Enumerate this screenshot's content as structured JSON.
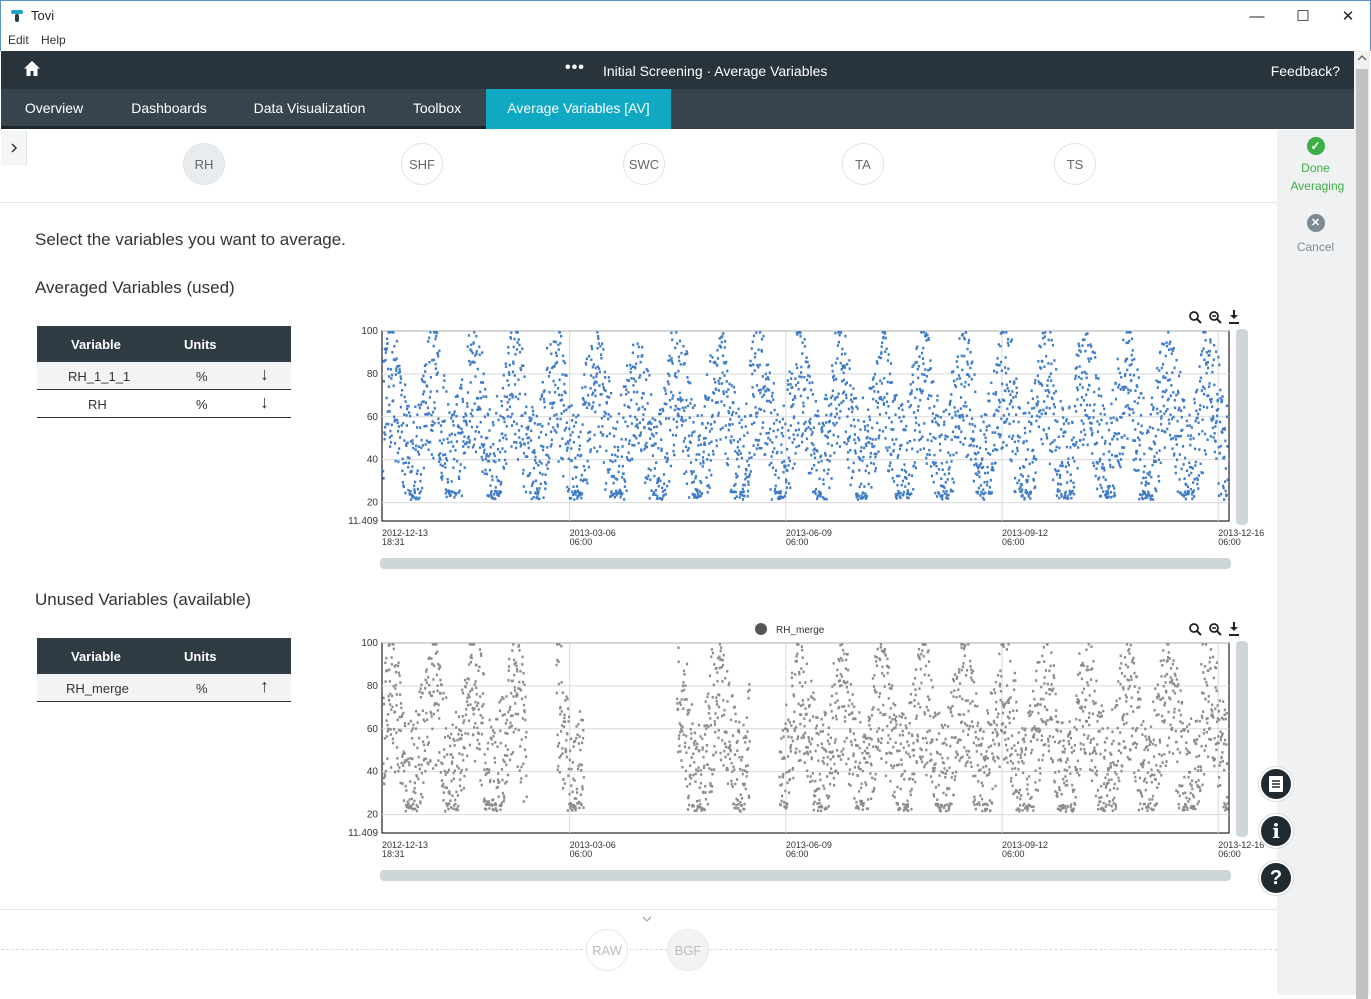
{
  "window": {
    "title": "Tovi",
    "minimize": "—",
    "maximize": "☐",
    "close": "✕"
  },
  "menu": {
    "edit": "Edit",
    "help": "Help"
  },
  "header": {
    "dots": "•••",
    "breadcrumb": "Initial Screening · Average Variables",
    "feedback": "Feedback?"
  },
  "tabs": [
    "Overview",
    "Dashboards",
    "Data Visualization",
    "Toolbox",
    "Average Variables [AV]"
  ],
  "variables": [
    "RH",
    "SHF",
    "SWC",
    "TA",
    "TS"
  ],
  "bottom_steps": [
    "RAW",
    "BGF"
  ],
  "rail": {
    "done": "Done Averaging",
    "cancel": "Cancel"
  },
  "instruction": "Select the variables you want to average.",
  "averaged": {
    "heading": "Averaged Variables (used)",
    "col_variable": "Variable",
    "col_units": "Units",
    "rows": [
      {
        "variable": "RH_1_1_1",
        "units": "%",
        "action": "↓"
      },
      {
        "variable": "RH",
        "units": "%",
        "action": "↓"
      }
    ]
  },
  "unused": {
    "heading": "Unused Variables (available)",
    "col_variable": "Variable",
    "col_units": "Units",
    "rows": [
      {
        "variable": "RH_merge",
        "units": "%",
        "action": "↑"
      }
    ]
  },
  "colors": {
    "header": "#29333b",
    "tabs": "#37444d",
    "active_tab": "#0fa9c4",
    "series_used": "#3e7cc8",
    "series_unused": "#8c8c8c",
    "done": "#3cae46",
    "cancel": "#7d8b93"
  },
  "chart_data": [
    {
      "type": "scatter",
      "title": "",
      "ylim": [
        11.409,
        100
      ],
      "yticks": [
        100,
        80,
        60,
        40,
        20,
        11.409
      ],
      "ytick_labels": [
        "100",
        "80",
        "60",
        "40",
        "20",
        "11.409"
      ],
      "xticks": [
        {
          "date": "2012-12-13",
          "time": "18:31"
        },
        {
          "date": "2013-03-06",
          "time": "06:00"
        },
        {
          "date": "2013-06-09",
          "time": "06:00"
        },
        {
          "date": "2013-09-12",
          "time": "06:00"
        },
        {
          "date": "2013-12-16",
          "time": "06:00"
        }
      ],
      "grid": true,
      "series": [
        {
          "color": "#3e7cc8",
          "range": [
            "2012-12-13",
            "2013-12-20"
          ],
          "approx_band": [
            20,
            100
          ],
          "gaps": []
        }
      ]
    },
    {
      "type": "scatter",
      "title": "",
      "legend": [
        "RH_merge"
      ],
      "legend_position": "top",
      "ylim": [
        11.409,
        100
      ],
      "yticks": [
        100,
        80,
        60,
        40,
        20,
        11.409
      ],
      "ytick_labels": [
        "100",
        "80",
        "60",
        "40",
        "20",
        "11.409"
      ],
      "xticks": [
        {
          "date": "2012-12-13",
          "time": "18:31"
        },
        {
          "date": "2013-03-06",
          "time": "06:00"
        },
        {
          "date": "2013-06-09",
          "time": "06:00"
        },
        {
          "date": "2013-09-12",
          "time": "06:00"
        },
        {
          "date": "2013-12-16",
          "time": "06:00"
        }
      ],
      "grid": true,
      "series": [
        {
          "name": "RH_merge",
          "color": "#8c8c8c",
          "range": [
            "2012-12-13",
            "2013-12-20"
          ],
          "approx_band": [
            20,
            100
          ],
          "gaps": [
            [
              "2013-02-15",
              "2013-02-28"
            ],
            [
              "2013-03-12",
              "2013-04-22"
            ],
            [
              "2013-05-24",
              "2013-06-06"
            ]
          ]
        }
      ]
    }
  ]
}
